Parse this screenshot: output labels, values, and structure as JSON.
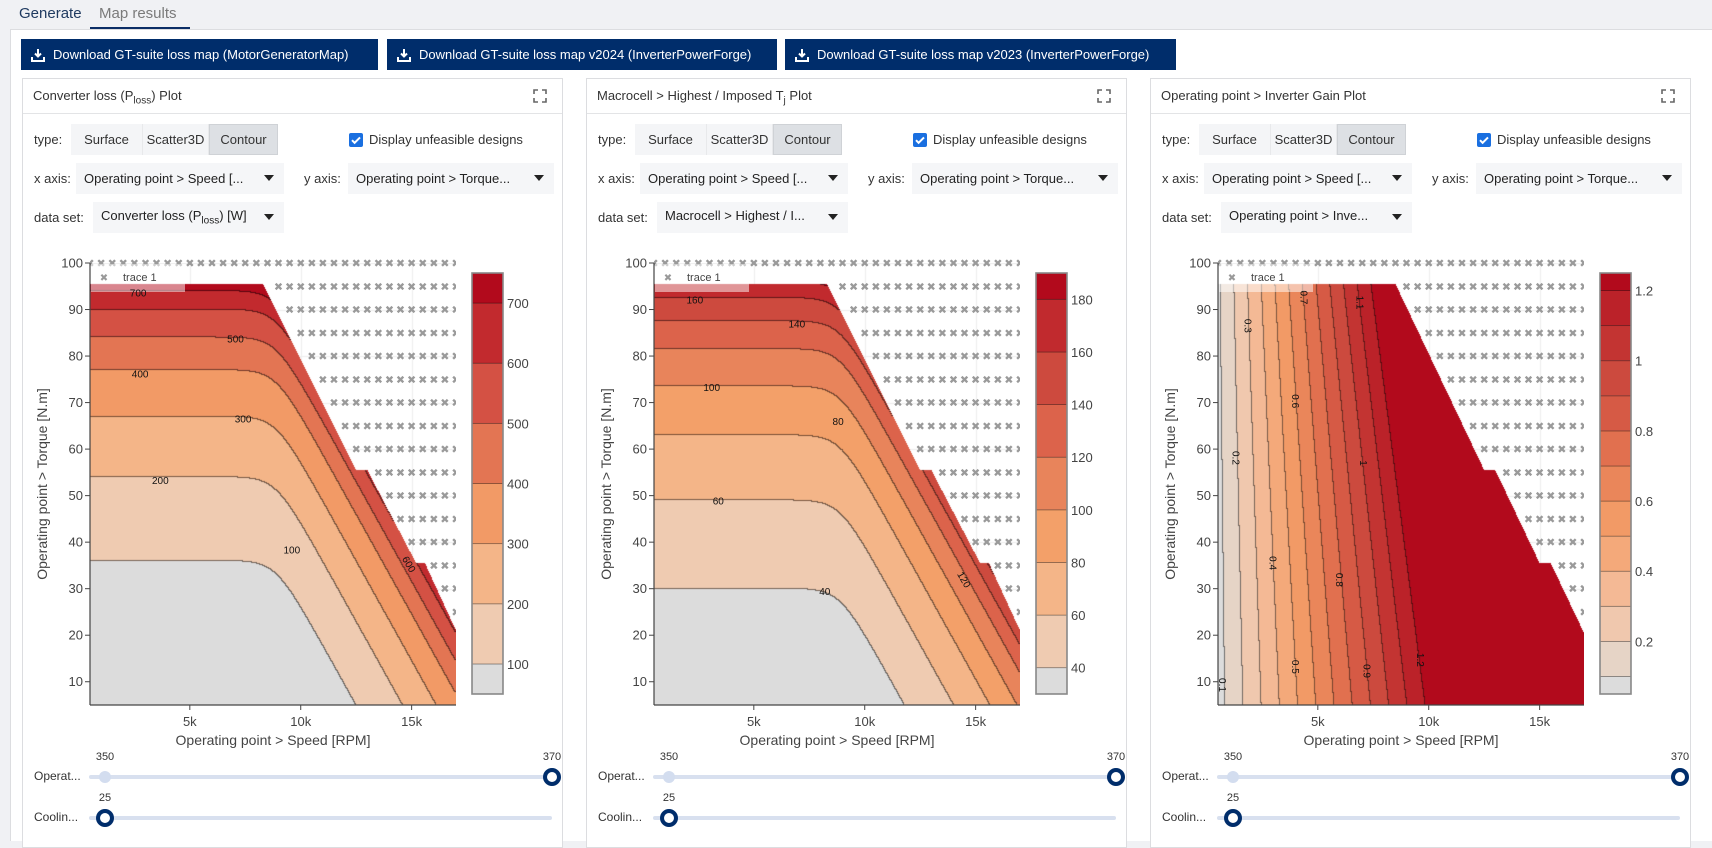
{
  "tabs": [
    {
      "label": "Generate"
    },
    {
      "label": "Map results",
      "active": true
    }
  ],
  "downloads": [
    {
      "label": "Download GT-suite loss map (MotorGeneratorMap)"
    },
    {
      "label": "Download GT-suite loss map v2024 (InverterPowerForge)"
    },
    {
      "label": "Download GT-suite loss map v2023 (InverterPowerForge)"
    }
  ],
  "colors": {
    "navy": "#002d6b",
    "checkbox": "#1a6fe0",
    "below_range": "#dcdcdc",
    "marker": "#9a9a9a"
  },
  "panels": [
    {
      "title": {
        "pre": "Converter loss (P",
        "sub": "loss",
        "post": ") Plot"
      },
      "type_label": "type:",
      "types": [
        "Surface",
        "Scatter3D",
        "Contour"
      ],
      "active_type": "Contour",
      "checkbox": {
        "label": "Display unfeasible designs",
        "checked": true
      },
      "x_axis_label": "x axis:",
      "x_axis_value": "Operating point > Speed [...",
      "y_axis_label": "y axis:",
      "y_axis_value": "Operating point > Torque...",
      "dataset_label": "data set:",
      "dataset_value": {
        "pre": "Converter loss (P",
        "sub": "loss",
        "post": ") [W]"
      },
      "sliders": [
        {
          "label": "Operat...",
          "min_label": "350",
          "value_label": "370",
          "value_fraction": 1
        },
        {
          "label": "Coolin...",
          "value_label": "25",
          "value_fraction": 0
        }
      ]
    },
    {
      "title": {
        "pre": "Macrocell > Highest / Imposed T",
        "sub": "j",
        "post": " Plot"
      },
      "type_label": "type:",
      "types": [
        "Surface",
        "Scatter3D",
        "Contour"
      ],
      "active_type": "Contour",
      "checkbox": {
        "label": "Display unfeasible designs",
        "checked": true
      },
      "x_axis_label": "x axis:",
      "x_axis_value": "Operating point > Speed [...",
      "y_axis_label": "y axis:",
      "y_axis_value": "Operating point > Torque...",
      "dataset_label": "data set:",
      "dataset_value": {
        "pre": "Macrocell > Highest / I...",
        "sub": "",
        "post": ""
      },
      "sliders": [
        {
          "label": "Operat...",
          "min_label": "350",
          "value_label": "370",
          "value_fraction": 1
        },
        {
          "label": "Coolin...",
          "value_label": "25",
          "value_fraction": 0
        }
      ]
    },
    {
      "title": {
        "pre": "Operating point > Inverter Gain Plot",
        "sub": "",
        "post": ""
      },
      "type_label": "type:",
      "types": [
        "Surface",
        "Scatter3D",
        "Contour"
      ],
      "active_type": "Contour",
      "checkbox": {
        "label": "Display unfeasible designs",
        "checked": true
      },
      "x_axis_label": "x axis:",
      "x_axis_value": "Operating point > Speed [...",
      "y_axis_label": "y axis:",
      "y_axis_value": "Operating point > Torque...",
      "dataset_label": "data set:",
      "dataset_value": {
        "pre": "Operating point > Inve...",
        "sub": "",
        "post": ""
      },
      "sliders": [
        {
          "label": "Operat...",
          "min_label": "350",
          "value_label": "370",
          "value_fraction": 1
        },
        {
          "label": "Coolin...",
          "value_label": "25",
          "value_fraction": 0
        }
      ]
    }
  ],
  "chart_data": [
    {
      "type": "contour",
      "xlabel": "Operating point > Speed [RPM]",
      "ylabel": "Operating point > Torque [N.m]",
      "xlim": [
        500,
        17000
      ],
      "ylim": [
        5,
        100
      ],
      "xticks": [
        5000,
        10000,
        15000
      ],
      "xtick_labels": [
        "5k",
        "10k",
        "15k"
      ],
      "yticks": [
        10,
        20,
        30,
        40,
        50,
        60,
        70,
        80,
        90,
        100
      ],
      "grid": true,
      "field": "torque-banded",
      "levels": [
        100,
        200,
        300,
        400,
        500,
        600,
        700
      ],
      "contour_torque_at_low_speed": [
        36,
        54,
        67,
        77,
        84,
        90,
        94
      ],
      "band_colors": [
        "#efcbb1",
        "#f4b588",
        "#f29a66",
        "#e37553",
        "#d45144",
        "#c22a2e",
        "#b20a1c"
      ],
      "colorbar": {
        "range": [
          50,
          750
        ],
        "ticks": [
          100,
          200,
          300,
          400,
          500,
          600,
          700
        ],
        "tick_labels": [
          "100",
          "200",
          "300",
          "400",
          "500",
          "600",
          "700"
        ]
      },
      "contour_labels": [
        {
          "text": "700",
          "x": 2670,
          "y": 93.7,
          "angle": 0
        },
        {
          "text": "500",
          "x": 7060,
          "y": 83.8,
          "angle": 0
        },
        {
          "text": "400",
          "x": 2760,
          "y": 76.3,
          "angle": 0
        },
        {
          "text": "300",
          "x": 7400,
          "y": 66.6,
          "angle": 0
        },
        {
          "text": "200",
          "x": 3670,
          "y": 53.4,
          "angle": 0
        },
        {
          "text": "100",
          "x": 9600,
          "y": 38.4,
          "angle": 0
        },
        {
          "text": "600",
          "x": 14900,
          "y": 35.3,
          "angle": 60
        }
      ],
      "feasible_region": [
        [
          500,
          5
        ],
        [
          500,
          95.5
        ],
        [
          8300,
          95.5
        ],
        [
          12500,
          55.5
        ],
        [
          13000,
          55.5
        ],
        [
          15200,
          35.5
        ],
        [
          15600,
          35.5
        ],
        [
          17000,
          21
        ],
        [
          17000,
          5
        ]
      ],
      "infeasible_markers": {
        "name": "trace 1",
        "torques": [
          100,
          95,
          90,
          85,
          80,
          75,
          70,
          65,
          60,
          55,
          50,
          45,
          40,
          35,
          30,
          25
        ],
        "speed_step": 500
      },
      "legend": {
        "entries": [
          "trace 1"
        ],
        "placement": "top-left"
      }
    },
    {
      "type": "contour",
      "xlabel": "Operating point > Speed [RPM]",
      "ylabel": "Operating point > Torque [N.m]",
      "xlim": [
        500,
        17000
      ],
      "ylim": [
        5,
        100
      ],
      "xticks": [
        5000,
        10000,
        15000
      ],
      "xtick_labels": [
        "5k",
        "10k",
        "15k"
      ],
      "yticks": [
        10,
        20,
        30,
        40,
        50,
        60,
        70,
        80,
        90,
        100
      ],
      "grid": true,
      "field": "torque-banded",
      "levels": [
        40,
        60,
        80,
        100,
        120,
        140,
        160,
        180
      ],
      "contour_torque_at_low_speed": [
        30,
        49,
        63,
        73.5,
        81.5,
        87.5,
        92.5,
        96
      ],
      "band_colors": [
        "#efcbb1",
        "#f4b588",
        "#f3a069",
        "#e8845b",
        "#dc634b",
        "#cd4a3e",
        "#c12a2e",
        "#b20a1c"
      ],
      "colorbar": {
        "range": [
          30,
          190
        ],
        "ticks": [
          40,
          60,
          80,
          100,
          120,
          140,
          160,
          180
        ],
        "tick_labels": [
          "40",
          "60",
          "80",
          "100",
          "120",
          "140",
          "160",
          "180"
        ]
      },
      "contour_labels": [
        {
          "text": "160",
          "x": 2340,
          "y": 92.2,
          "angle": 0
        },
        {
          "text": "140",
          "x": 6940,
          "y": 87,
          "angle": 0
        },
        {
          "text": "100",
          "x": 3100,
          "y": 73.3,
          "angle": 0
        },
        {
          "text": "80",
          "x": 8800,
          "y": 66,
          "angle": 0
        },
        {
          "text": "60",
          "x": 3400,
          "y": 49,
          "angle": 0
        },
        {
          "text": "40",
          "x": 8200,
          "y": 29.5,
          "angle": 0
        },
        {
          "text": "120",
          "x": 14500,
          "y": 32,
          "angle": 60
        }
      ],
      "feasible_region": [
        [
          500,
          5
        ],
        [
          500,
          95.5
        ],
        [
          8300,
          95.5
        ],
        [
          12500,
          55.5
        ],
        [
          13000,
          55.5
        ],
        [
          15200,
          35.5
        ],
        [
          15600,
          35.5
        ],
        [
          17000,
          21
        ],
        [
          17000,
          5
        ]
      ],
      "infeasible_markers": {
        "name": "trace 1",
        "torques": [
          100,
          95,
          90,
          85,
          80,
          75,
          70,
          65,
          60,
          55,
          50,
          45,
          40,
          35,
          30,
          25
        ],
        "speed_step": 500
      },
      "legend": {
        "entries": [
          "trace 1"
        ],
        "placement": "top-left"
      }
    },
    {
      "type": "contour",
      "xlabel": "Operating point > Speed [RPM]",
      "ylabel": "Operating point > Torque [N.m]",
      "xlim": [
        500,
        17000
      ],
      "ylim": [
        5,
        100
      ],
      "xticks": [
        5000,
        10000,
        15000
      ],
      "xtick_labels": [
        "5k",
        "10k",
        "15k"
      ],
      "yticks": [
        10,
        20,
        30,
        40,
        50,
        60,
        70,
        80,
        90,
        100
      ],
      "grid": true,
      "field": "speed-banded",
      "levels": [
        0.1,
        0.2,
        0.3,
        0.4,
        0.5,
        0.6,
        0.7,
        0.8,
        0.9,
        1.0,
        1.1,
        1.2
      ],
      "contour_speed_at_torque_10": [
        810,
        1620,
        2430,
        3240,
        4050,
        4860,
        5670,
        6480,
        7290,
        8100,
        8910,
        9720
      ],
      "contour_speed_at_torque_90": [
        630,
        1260,
        1890,
        2520,
        3150,
        3780,
        4410,
        5040,
        5670,
        6300,
        6930,
        7560
      ],
      "band_colors": [
        "#e6d4c6",
        "#f0c8ae",
        "#f4b995",
        "#f4a97a",
        "#f29a66",
        "#ea865a",
        "#e1704f",
        "#d65a45",
        "#cc4a3e",
        "#c33432",
        "#bb2229",
        "#b20a1c"
      ],
      "colorbar": {
        "range": [
          0.05,
          1.25
        ],
        "ticks": [
          0.2,
          0.4,
          0.6,
          0.8,
          1.0,
          1.2
        ],
        "tick_labels": [
          "0.2",
          "0.4",
          "0.6",
          "0.8",
          "1",
          "1.2"
        ]
      },
      "contour_labels": [
        {
          "text": "0.7",
          "x": 4410,
          "y": 92.6,
          "angle": 90
        },
        {
          "text": "1.1",
          "x": 6930,
          "y": 91.5,
          "angle": 90
        },
        {
          "text": "0.3",
          "x": 1880,
          "y": 86.5,
          "angle": 90
        },
        {
          "text": "0.6",
          "x": 4020,
          "y": 70.3,
          "angle": 90
        },
        {
          "text": "0.2",
          "x": 1340,
          "y": 58.1,
          "angle": 90
        },
        {
          "text": "1",
          "x": 7080,
          "y": 57,
          "angle": 90
        },
        {
          "text": "0.4",
          "x": 3010,
          "y": 35.5,
          "angle": 90
        },
        {
          "text": "0.8",
          "x": 6010,
          "y": 31.9,
          "angle": 90
        },
        {
          "text": "1.2",
          "x": 9660,
          "y": 14.7,
          "angle": 90
        },
        {
          "text": "0.5",
          "x": 4020,
          "y": 13.2,
          "angle": 90
        },
        {
          "text": "0.9",
          "x": 7240,
          "y": 12.3,
          "angle": 90
        },
        {
          "text": "0.1",
          "x": 730,
          "y": 9.3,
          "angle": 90
        }
      ],
      "feasible_region": [
        [
          500,
          5
        ],
        [
          500,
          95.5
        ],
        [
          8500,
          95.5
        ],
        [
          12500,
          55.5
        ],
        [
          13000,
          55.5
        ],
        [
          15000,
          35.5
        ],
        [
          15500,
          35.5
        ],
        [
          17000,
          20.5
        ],
        [
          17000,
          5
        ]
      ],
      "infeasible_markers": {
        "name": "trace 1",
        "torques": [
          100,
          95,
          90,
          85,
          80,
          75,
          70,
          65,
          60,
          55,
          50,
          45,
          40,
          35,
          30,
          25
        ],
        "speed_step": 500
      },
      "legend": {
        "entries": [
          "trace 1"
        ],
        "placement": "top-left"
      }
    }
  ]
}
